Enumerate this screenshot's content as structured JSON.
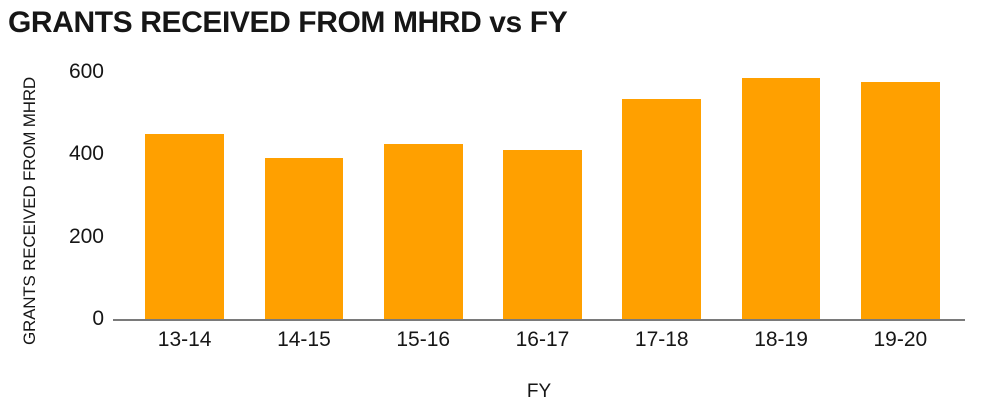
{
  "colors": {
    "bar": "#FFA000",
    "axis": "#7A7A7A",
    "text": "#161616",
    "background": "#FFFFFF"
  },
  "chart_data": {
    "type": "bar",
    "title": "GRANTS RECEIVED FROM MHRD vs FY",
    "categories": [
      "13-14",
      "14-15",
      "15-16",
      "16-17",
      "17-18",
      "18-19",
      "19-20"
    ],
    "values": [
      450,
      390,
      425,
      410,
      535,
      585,
      575
    ],
    "xlabel": "FY",
    "ylabel": "GRANTS RECEIVED FROM MHRD",
    "ylim": [
      0,
      600
    ],
    "yticks": [
      0,
      200,
      400,
      600
    ],
    "grid": false,
    "legend": false,
    "bar_color": "#FFA000"
  }
}
